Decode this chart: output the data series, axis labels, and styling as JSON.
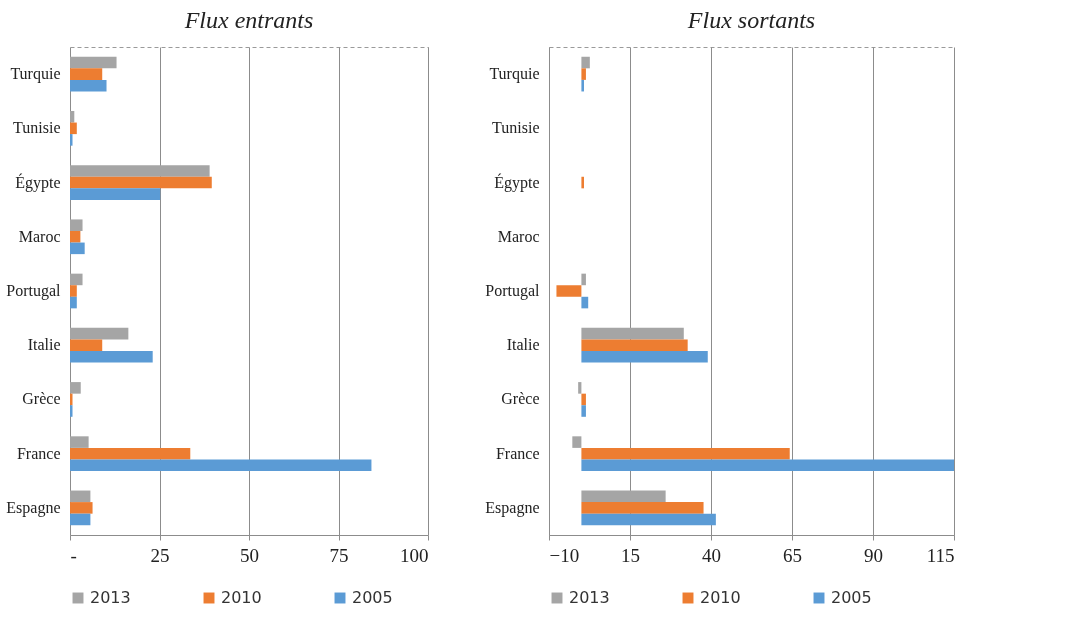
{
  "chart_data": [
    {
      "type": "bar",
      "orientation": "horizontal",
      "title": "Flux entrants",
      "categories": [
        "Turquie",
        "Tunisie",
        "Égypte",
        "Maroc",
        "Portugal",
        "Italie",
        "Grèce",
        "France",
        "Espagne"
      ],
      "series": [
        {
          "name": "2013",
          "color": "#a5a5a5",
          "values": [
            13,
            1.2,
            39,
            3.5,
            3.5,
            16.3,
            3,
            5.2,
            5.7
          ]
        },
        {
          "name": "2010",
          "color": "#ed7d31",
          "values": [
            9,
            1.9,
            39.6,
            2.9,
            1.9,
            9,
            0.7,
            33.6,
            6.3
          ]
        },
        {
          "name": "2005",
          "color": "#5b9bd5",
          "values": [
            10.2,
            0.7,
            25.2,
            4.1,
            1.9,
            23.1,
            0.7,
            84.2,
            5.7
          ]
        }
      ],
      "xlim": [
        0,
        100
      ],
      "xticks": [
        {
          "value": 0,
          "label": "-"
        },
        25,
        50,
        75,
        100
      ],
      "grid": "x",
      "legend": "bottom"
    },
    {
      "type": "bar",
      "orientation": "horizontal",
      "title": "Flux sortants",
      "categories": [
        "Turquie",
        "Tunisie",
        "Égypte",
        "Maroc",
        "Portugal",
        "Italie",
        "Grèce",
        "France",
        "Espagne"
      ],
      "series": [
        {
          "name": "2013",
          "color": "#a5a5a5",
          "values": [
            2.6,
            0,
            0,
            0,
            1.4,
            31.6,
            -1,
            -2.8,
            26
          ]
        },
        {
          "name": "2010",
          "color": "#ed7d31",
          "values": [
            1.4,
            0,
            0.8,
            0,
            -7.7,
            32.8,
            1.4,
            64.3,
            37.7
          ]
        },
        {
          "name": "2005",
          "color": "#5b9bd5",
          "values": [
            0.8,
            0,
            0,
            0,
            2.1,
            39,
            1.4,
            115,
            41.5
          ]
        }
      ],
      "xlim": [
        -10,
        115
      ],
      "xticks": [
        -10,
        15,
        40,
        65,
        90,
        115
      ],
      "grid": "x",
      "legend": "bottom"
    }
  ]
}
